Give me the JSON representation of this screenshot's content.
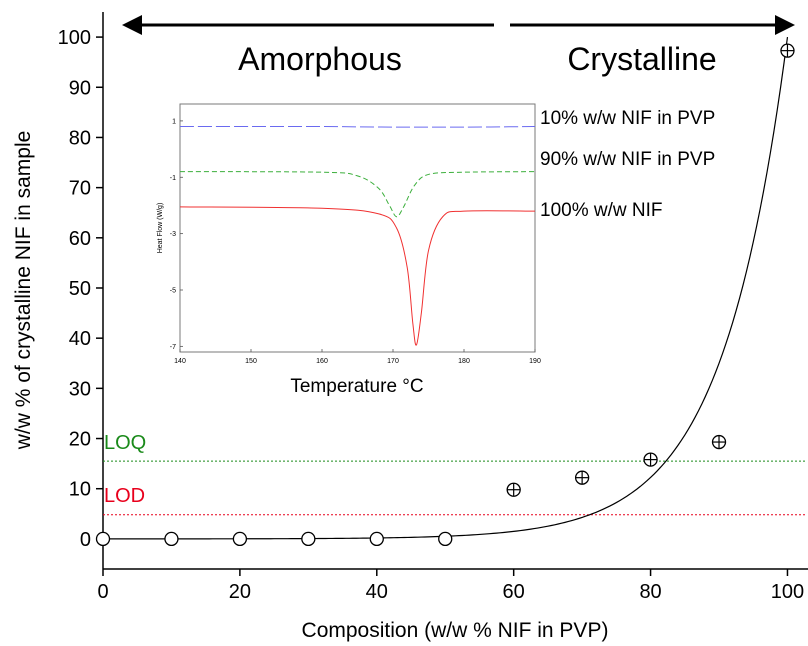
{
  "colors": {
    "axis": "#000000",
    "fit": "#000000",
    "loq": "#1a8a1a",
    "lod": "#e8001c",
    "dsc_10": "#6a6af0",
    "dsc_90": "#3caf3c",
    "dsc_100": "#f03030"
  },
  "chart_data": [
    {
      "type": "scatter",
      "title": "",
      "xlabel": "Composition (w/w % NIF in PVP)",
      "ylabel": "w/w % of crystalline NIF in sample",
      "xlim": [
        0,
        103
      ],
      "ylim": [
        -6,
        105
      ],
      "xticks": [
        "0",
        "20",
        "40",
        "60",
        "80",
        "100"
      ],
      "yticks": [
        "0",
        "10",
        "20",
        "30",
        "40",
        "50",
        "60",
        "70",
        "80",
        "90",
        "100"
      ],
      "grid": false,
      "series": [
        {
          "marker": "circle",
          "x": [
            0,
            10,
            20,
            30,
            40,
            50
          ],
          "y": [
            0,
            0,
            0,
            0,
            0,
            0
          ]
        },
        {
          "marker": "circle-plus",
          "x": [
            60,
            70,
            80,
            90,
            100
          ],
          "y": [
            9.8,
            12.2,
            15.8,
            19.3,
            97.3
          ]
        }
      ],
      "fit_curve": {
        "type": "exponential",
        "points": [
          [
            0,
            0
          ],
          [
            50,
            0.2
          ],
          [
            60,
            1.3
          ],
          [
            70,
            3.2
          ],
          [
            78,
            7.5
          ],
          [
            85,
            17
          ],
          [
            90,
            31
          ],
          [
            95,
            58
          ],
          [
            100,
            100
          ]
        ]
      },
      "reference_lines": [
        {
          "label": "LOQ",
          "y": 15.5,
          "color_key": "loq"
        },
        {
          "label": "LOD",
          "y": 4.8,
          "color_key": "lod"
        }
      ],
      "region_labels": [
        {
          "text": "Amorphous",
          "x_from": 0,
          "x_to": 57
        },
        {
          "text": "Crystalline",
          "x_from": 59,
          "x_to": 100
        }
      ]
    },
    {
      "type": "line",
      "title": "",
      "xlabel": "Temperature °C",
      "ylabel": "Heat Flow (W/g)",
      "xlim": [
        140,
        190
      ],
      "ylim": [
        -7.2,
        1.6
      ],
      "xticks": [
        "140",
        "150",
        "160",
        "170",
        "180",
        "190"
      ],
      "yticks": [
        "1",
        "-1",
        "-3",
        "-5",
        "-7"
      ],
      "series": [
        {
          "name": "10% w/w NIF in PVP",
          "color_key": "dsc_10",
          "dash": "long",
          "x": [
            140,
            150,
            160,
            170,
            180,
            190
          ],
          "y": [
            0.8,
            0.8,
            0.8,
            0.78,
            0.78,
            0.8
          ]
        },
        {
          "name": "90% w/w NIF in PVP",
          "color_key": "dsc_90",
          "dash": "short",
          "x": [
            140,
            160,
            165,
            168,
            169.5,
            170.5,
            171.5,
            173,
            175,
            180,
            190
          ],
          "y": [
            -0.8,
            -0.82,
            -0.95,
            -1.4,
            -2.0,
            -2.4,
            -2.05,
            -1.3,
            -0.9,
            -0.82,
            -0.8
          ]
        },
        {
          "name": "100% w/w NIF",
          "color_key": "dsc_100",
          "dash": "solid",
          "x": [
            140,
            160,
            168,
            170.5,
            172,
            172.8,
            173.3,
            174,
            175,
            177,
            180,
            190
          ],
          "y": [
            -2.05,
            -2.1,
            -2.3,
            -2.8,
            -4.2,
            -6.2,
            -6.95,
            -5.8,
            -3.6,
            -2.4,
            -2.2,
            -2.2
          ]
        }
      ]
    }
  ]
}
